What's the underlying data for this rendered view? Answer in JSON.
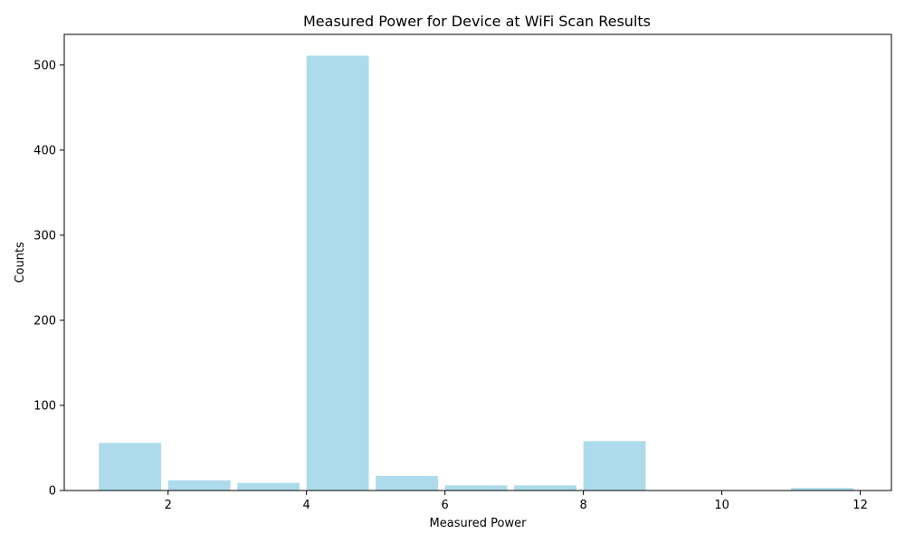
{
  "chart_data": {
    "type": "bar",
    "title": "Measured Power for Device at WiFi Scan Results",
    "xlabel": "Measured Power",
    "ylabel": "Counts",
    "bars": [
      {
        "x_start": 1.0,
        "x_end": 1.9,
        "value": 56
      },
      {
        "x_start": 2.0,
        "x_end": 2.9,
        "value": 12
      },
      {
        "x_start": 3.0,
        "x_end": 3.9,
        "value": 9
      },
      {
        "x_start": 4.0,
        "x_end": 4.9,
        "value": 511
      },
      {
        "x_start": 5.0,
        "x_end": 5.9,
        "value": 17
      },
      {
        "x_start": 6.0,
        "x_end": 6.9,
        "value": 6
      },
      {
        "x_start": 7.0,
        "x_end": 7.9,
        "value": 6
      },
      {
        "x_start": 8.0,
        "x_end": 8.9,
        "value": 58
      },
      {
        "x_start": 9.0,
        "x_end": 9.9,
        "value": 0
      },
      {
        "x_start": 10.0,
        "x_end": 10.9,
        "value": 0
      },
      {
        "x_start": 11.0,
        "x_end": 11.9,
        "value": 3
      }
    ],
    "xlim": [
      0.5,
      12.45
    ],
    "ylim": [
      0,
      536
    ],
    "x_ticks": [
      2,
      4,
      6,
      8,
      10,
      12
    ],
    "x_tick_labels": [
      "2",
      "4",
      "6",
      "8",
      "10",
      "12"
    ],
    "y_ticks": [
      0,
      100,
      200,
      300,
      400,
      500
    ],
    "y_tick_labels": [
      "0",
      "100",
      "200",
      "300",
      "400",
      "500"
    ],
    "bar_color": "#ADDBEB",
    "grid": false,
    "legend": "none"
  }
}
